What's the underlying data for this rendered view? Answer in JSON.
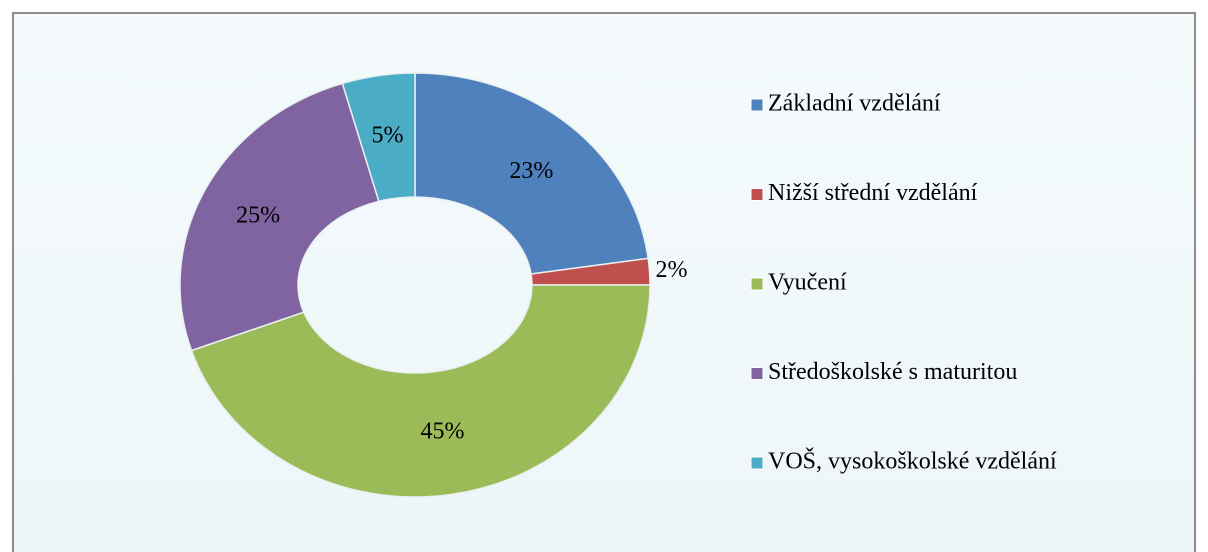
{
  "chart_data": {
    "type": "donut",
    "categories": [
      "Základní vzdělání",
      "Nižší střední vzdělání",
      "Vyučení",
      "Středoškolské s maturitou",
      "VOŠ, vysokoškolské vzdělání"
    ],
    "values": [
      23,
      2,
      45,
      25,
      5
    ],
    "value_labels": [
      "23%",
      "2%",
      "45%",
      "25%",
      "5%"
    ],
    "colors": [
      "#4f81bd",
      "#c0504d",
      "#9bbb59",
      "#8064a2",
      "#4bacc6"
    ],
    "legend": "right"
  }
}
